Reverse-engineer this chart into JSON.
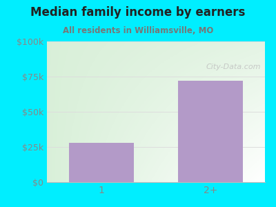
{
  "title": "Median family income by earners",
  "subtitle": "All residents in Williamsville, MO",
  "categories": [
    "1",
    "2+"
  ],
  "values": [
    28000,
    72000
  ],
  "bar_color": "#b39ac8",
  "ylim": [
    0,
    100000
  ],
  "yticks": [
    0,
    25000,
    50000,
    75000,
    100000
  ],
  "ytick_labels": [
    "$0",
    "$25k",
    "$50k",
    "$75k",
    "$100k"
  ],
  "bg_outer": "#00eeff",
  "title_color": "#222222",
  "subtitle_color": "#777777",
  "tick_color": "#888888",
  "watermark": "City-Data.com",
  "grid_color": "#dddddd"
}
